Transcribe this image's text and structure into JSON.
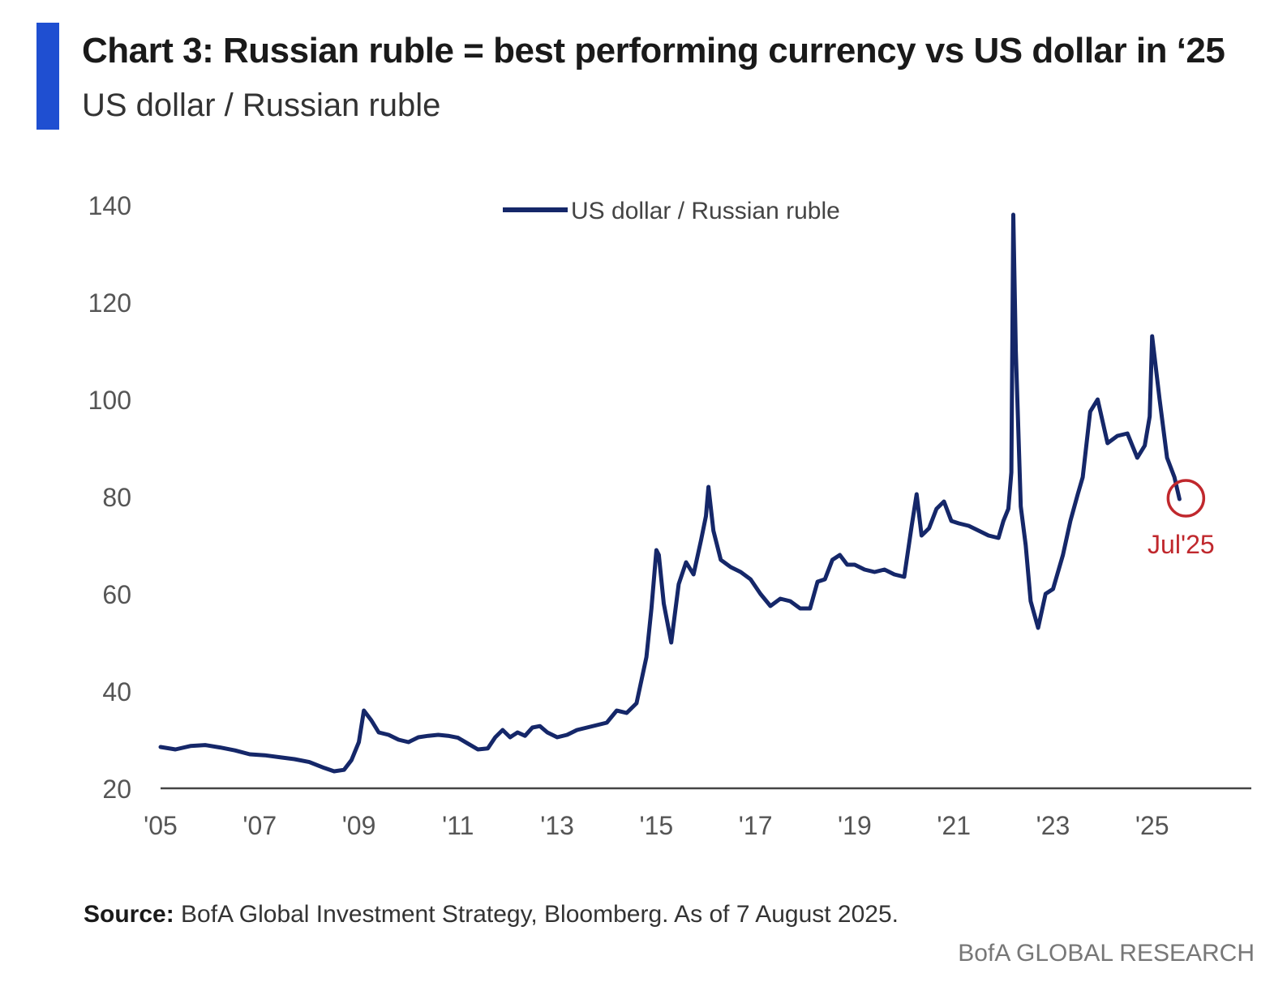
{
  "header": {
    "title": "Chart 3: Russian ruble = best performing currency vs US dollar in ‘25",
    "subtitle": "US dollar / Russian ruble"
  },
  "chart_data": {
    "type": "line",
    "title": "Chart 3: Russian ruble = best performing currency vs US dollar in ‘25",
    "subtitle": "US dollar / Russian ruble",
    "xlabel": "",
    "ylabel": "",
    "xlim": [
      2005,
      2027
    ],
    "ylim": [
      20,
      140
    ],
    "y_ticks": [
      20,
      40,
      60,
      80,
      100,
      120,
      140
    ],
    "x_ticks": [
      {
        "value": 2005,
        "label": "'05"
      },
      {
        "value": 2007,
        "label": "'07"
      },
      {
        "value": 2009,
        "label": "'09"
      },
      {
        "value": 2011,
        "label": "'11"
      },
      {
        "value": 2013,
        "label": "'13"
      },
      {
        "value": 2015,
        "label": "'15"
      },
      {
        "value": 2017,
        "label": "'17"
      },
      {
        "value": 2019,
        "label": "'19"
      },
      {
        "value": 2021,
        "label": "'21"
      },
      {
        "value": 2023,
        "label": "'23"
      },
      {
        "value": 2025,
        "label": "'25"
      }
    ],
    "grid": false,
    "legend": {
      "position": "top-center",
      "entries": [
        "US dollar / Russian ruble"
      ]
    },
    "colors": {
      "line": "#152769",
      "highlight": "#c0282d",
      "axis": "#444444",
      "accent": "#1f4fd1"
    },
    "series": [
      {
        "name": "US dollar / Russian ruble",
        "x": [
          2005.0,
          2005.3,
          2005.6,
          2005.9,
          2006.2,
          2006.5,
          2006.8,
          2007.1,
          2007.4,
          2007.7,
          2008.0,
          2008.3,
          2008.5,
          2008.7,
          2008.85,
          2009.0,
          2009.1,
          2009.25,
          2009.4,
          2009.6,
          2009.8,
          2010.0,
          2010.2,
          2010.4,
          2010.6,
          2010.8,
          2011.0,
          2011.2,
          2011.4,
          2011.6,
          2011.75,
          2011.9,
          2012.05,
          2012.2,
          2012.35,
          2012.5,
          2012.65,
          2012.8,
          2013.0,
          2013.2,
          2013.4,
          2013.6,
          2013.8,
          2014.0,
          2014.2,
          2014.4,
          2014.6,
          2014.8,
          2014.9,
          2015.0,
          2015.05,
          2015.15,
          2015.3,
          2015.45,
          2015.6,
          2015.75,
          2015.9,
          2016.0,
          2016.05,
          2016.15,
          2016.3,
          2016.5,
          2016.7,
          2016.9,
          2017.1,
          2017.3,
          2017.5,
          2017.7,
          2017.9,
          2018.1,
          2018.25,
          2018.4,
          2018.55,
          2018.7,
          2018.85,
          2019.0,
          2019.2,
          2019.4,
          2019.6,
          2019.8,
          2020.0,
          2020.15,
          2020.25,
          2020.35,
          2020.5,
          2020.65,
          2020.8,
          2020.95,
          2021.1,
          2021.3,
          2021.5,
          2021.7,
          2021.9,
          2022.0,
          2022.1,
          2022.16,
          2022.2,
          2022.25,
          2022.35,
          2022.45,
          2022.55,
          2022.7,
          2022.85,
          2023.0,
          2023.2,
          2023.35,
          2023.5,
          2023.6,
          2023.75,
          2023.9,
          2024.1,
          2024.3,
          2024.5,
          2024.7,
          2024.85,
          2024.95,
          2025.0,
          2025.15,
          2025.3,
          2025.45,
          2025.55
        ],
        "values": [
          28.5,
          28.0,
          28.7,
          28.9,
          28.4,
          27.8,
          27.0,
          26.8,
          26.4,
          26.0,
          25.4,
          24.2,
          23.5,
          23.8,
          25.8,
          29.5,
          36.0,
          34.0,
          31.5,
          31.0,
          30.0,
          29.5,
          30.5,
          30.8,
          31.0,
          30.8,
          30.4,
          29.2,
          28.0,
          28.2,
          30.5,
          32.0,
          30.5,
          31.5,
          30.8,
          32.5,
          32.8,
          31.5,
          30.5,
          31.0,
          32.0,
          32.5,
          33.0,
          33.5,
          36.0,
          35.5,
          37.5,
          47.0,
          57.0,
          69.0,
          68.0,
          58.0,
          50.0,
          62.0,
          66.5,
          64.0,
          71.0,
          76.0,
          82.0,
          73.0,
          67.0,
          65.5,
          64.5,
          63.0,
          60.0,
          57.5,
          59.0,
          58.5,
          57.0,
          57.0,
          62.5,
          63.0,
          67.0,
          68.0,
          66.0,
          66.0,
          65.0,
          64.5,
          65.0,
          64.0,
          63.5,
          74.0,
          80.5,
          72.0,
          73.5,
          77.5,
          79.0,
          75.0,
          74.5,
          74.0,
          73.0,
          72.0,
          71.5,
          75.0,
          77.5,
          85.0,
          138.0,
          110.0,
          78.0,
          70.0,
          58.5,
          53.0,
          60.0,
          61.0,
          68.0,
          75.0,
          80.5,
          84.0,
          97.5,
          100.0,
          91.0,
          92.5,
          93.0,
          88.0,
          90.5,
          96.5,
          113.0,
          100.0,
          88.0,
          84.0,
          79.5
        ]
      }
    ],
    "annotations": [
      {
        "text": "Jul'25",
        "x": 2025.55,
        "y": 79.5,
        "style": "circle"
      }
    ]
  },
  "footer": {
    "source_label": "Source:",
    "source_text": " BofA Global Investment Strategy, Bloomberg. As of 7 August 2025.",
    "brand": "BofA GLOBAL RESEARCH"
  }
}
